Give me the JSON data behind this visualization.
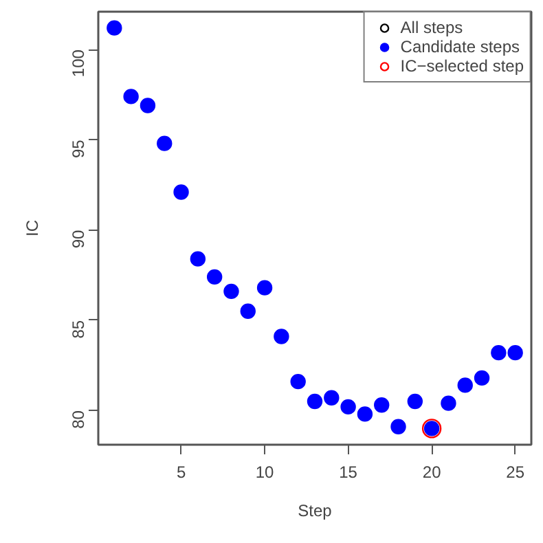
{
  "chart_data": {
    "type": "scatter",
    "xlabel": "Step",
    "ylabel": "IC",
    "x": [
      1,
      2,
      3,
      4,
      5,
      6,
      7,
      8,
      9,
      10,
      11,
      12,
      13,
      14,
      15,
      16,
      17,
      18,
      19,
      20,
      21,
      22,
      23,
      24,
      25
    ],
    "series": [
      {
        "name": "All steps",
        "color": "#000000",
        "values": [
          null,
          null,
          null,
          null,
          null,
          null,
          null,
          null,
          null,
          null,
          null,
          null,
          null,
          null,
          null,
          null,
          null,
          null,
          null,
          null,
          null,
          null,
          null,
          null,
          null
        ]
      },
      {
        "name": "Candidate steps",
        "color": "#0000ff",
        "values": [
          101.2,
          97.4,
          96.9,
          94.8,
          92.1,
          88.4,
          87.4,
          86.6,
          85.5,
          86.8,
          84.1,
          81.6,
          80.5,
          80.7,
          80.2,
          79.8,
          80.3,
          79.1,
          80.5,
          79.0,
          80.4,
          81.4,
          81.8,
          83.2,
          83.2
        ]
      },
      {
        "name": "IC−selected step",
        "color": "#ff0000",
        "x": [
          20
        ],
        "values": [
          79.0
        ]
      }
    ],
    "xlim": [
      0.04,
      25.96
    ],
    "ylim": [
      78.1,
      102.1
    ],
    "xticks": [
      5,
      10,
      15,
      20,
      25
    ],
    "yticks": [
      80,
      85,
      90,
      95,
      100
    ],
    "grid": false,
    "legend": "top right",
    "marker": "circle"
  }
}
